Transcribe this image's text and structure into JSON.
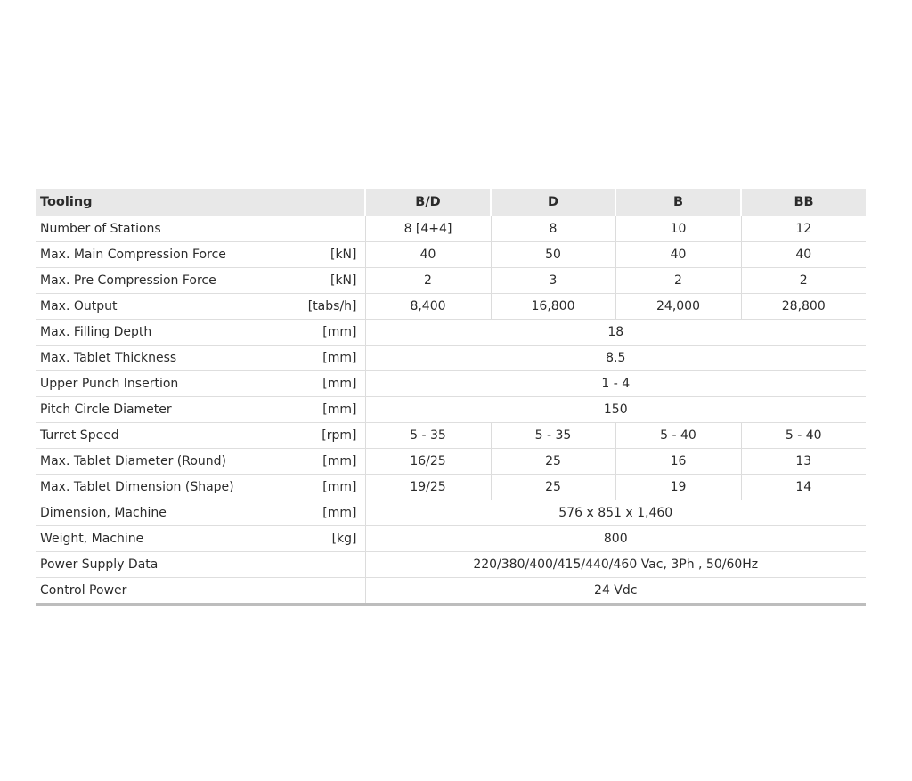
{
  "header": {
    "label": "Tooling",
    "columns": [
      "B/D",
      "D",
      "B",
      "BB"
    ]
  },
  "rows": [
    {
      "label": "Number of Stations",
      "unit": "",
      "values": [
        "8 [4+4]",
        "8",
        "10",
        "12"
      ]
    },
    {
      "label": "Max. Main Compression Force",
      "unit": "[kN]",
      "values": [
        "40",
        "50",
        "40",
        "40"
      ]
    },
    {
      "label": "Max. Pre Compression Force",
      "unit": "[kN]",
      "values": [
        "2",
        "3",
        "2",
        "2"
      ]
    },
    {
      "label": "Max. Output",
      "unit": "[tabs/h]",
      "values": [
        "8,400",
        "16,800",
        "24,000",
        "28,800"
      ]
    },
    {
      "label": "Max. Filling Depth",
      "unit": "[mm]",
      "values": [
        "18"
      ]
    },
    {
      "label": "Max. Tablet Thickness",
      "unit": "[mm]",
      "values": [
        "8.5"
      ]
    },
    {
      "label": "Upper Punch Insertion",
      "unit": "[mm]",
      "values": [
        "1 - 4"
      ]
    },
    {
      "label": "Pitch Circle Diameter",
      "unit": "[mm]",
      "values": [
        "150"
      ]
    },
    {
      "label": "Turret Speed",
      "unit": "[rpm]",
      "values": [
        "5 - 35",
        "5 - 35",
        "5 - 40",
        "5 - 40"
      ]
    },
    {
      "label": "Max. Tablet Diameter (Round)",
      "unit": "[mm]",
      "values": [
        "16/25",
        "25",
        "16",
        "13"
      ]
    },
    {
      "label": "Max. Tablet Dimension (Shape)",
      "unit": "[mm]",
      "values": [
        "19/25",
        "25",
        "19",
        "14"
      ]
    },
    {
      "label": "Dimension, Machine",
      "unit": "[mm]",
      "values": [
        "576 x 851 x 1,460"
      ]
    },
    {
      "label": "Weight, Machine",
      "unit": "[kg]",
      "values": [
        "800"
      ]
    },
    {
      "label": "Power Supply Data",
      "unit": "",
      "values": [
        "220/380/400/415/440/460 Vac, 3Ph , 50/60Hz"
      ]
    },
    {
      "label": "Control Power",
      "unit": "",
      "values": [
        "24 Vdc"
      ]
    }
  ]
}
